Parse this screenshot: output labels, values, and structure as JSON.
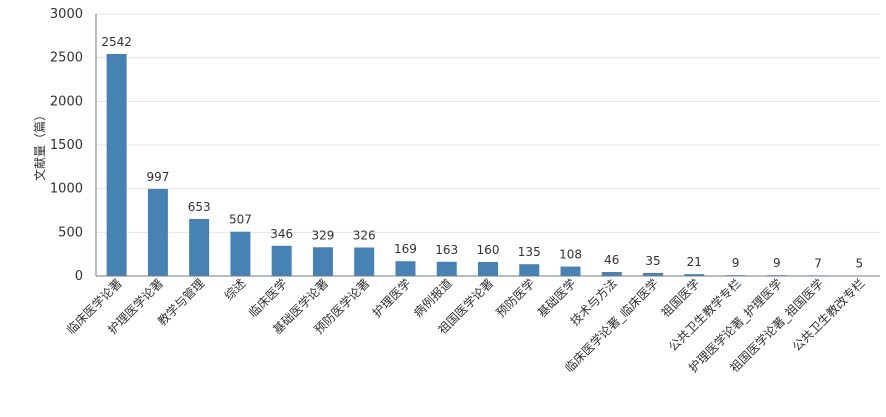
{
  "chart_data": {
    "type": "bar",
    "ylabel": "文献量（篇）",
    "ylim": [
      0,
      3000
    ],
    "yticks": [
      0,
      500,
      1000,
      1500,
      2000,
      2500,
      3000
    ],
    "grid": true,
    "bar_color": "#4682b4",
    "categories": [
      "临床医学论著",
      "护理医学论著",
      "教学与管理",
      "综述",
      "临床医学",
      "基础医学论著",
      "预防医学论著",
      "护理医学",
      "病例报道",
      "祖国医学论著",
      "预防医学",
      "基础医学",
      "技术与方法",
      "临床医学论著_临床医学",
      "祖国医学",
      "公共卫生教学专栏",
      "护理医学论著_护理医学",
      "祖国医学论著_祖国医学",
      "公共卫生教改专栏"
    ],
    "values": [
      2542,
      997,
      653,
      507,
      346,
      329,
      326,
      169,
      163,
      160,
      135,
      108,
      46,
      35,
      21,
      9,
      9,
      7,
      5
    ]
  }
}
